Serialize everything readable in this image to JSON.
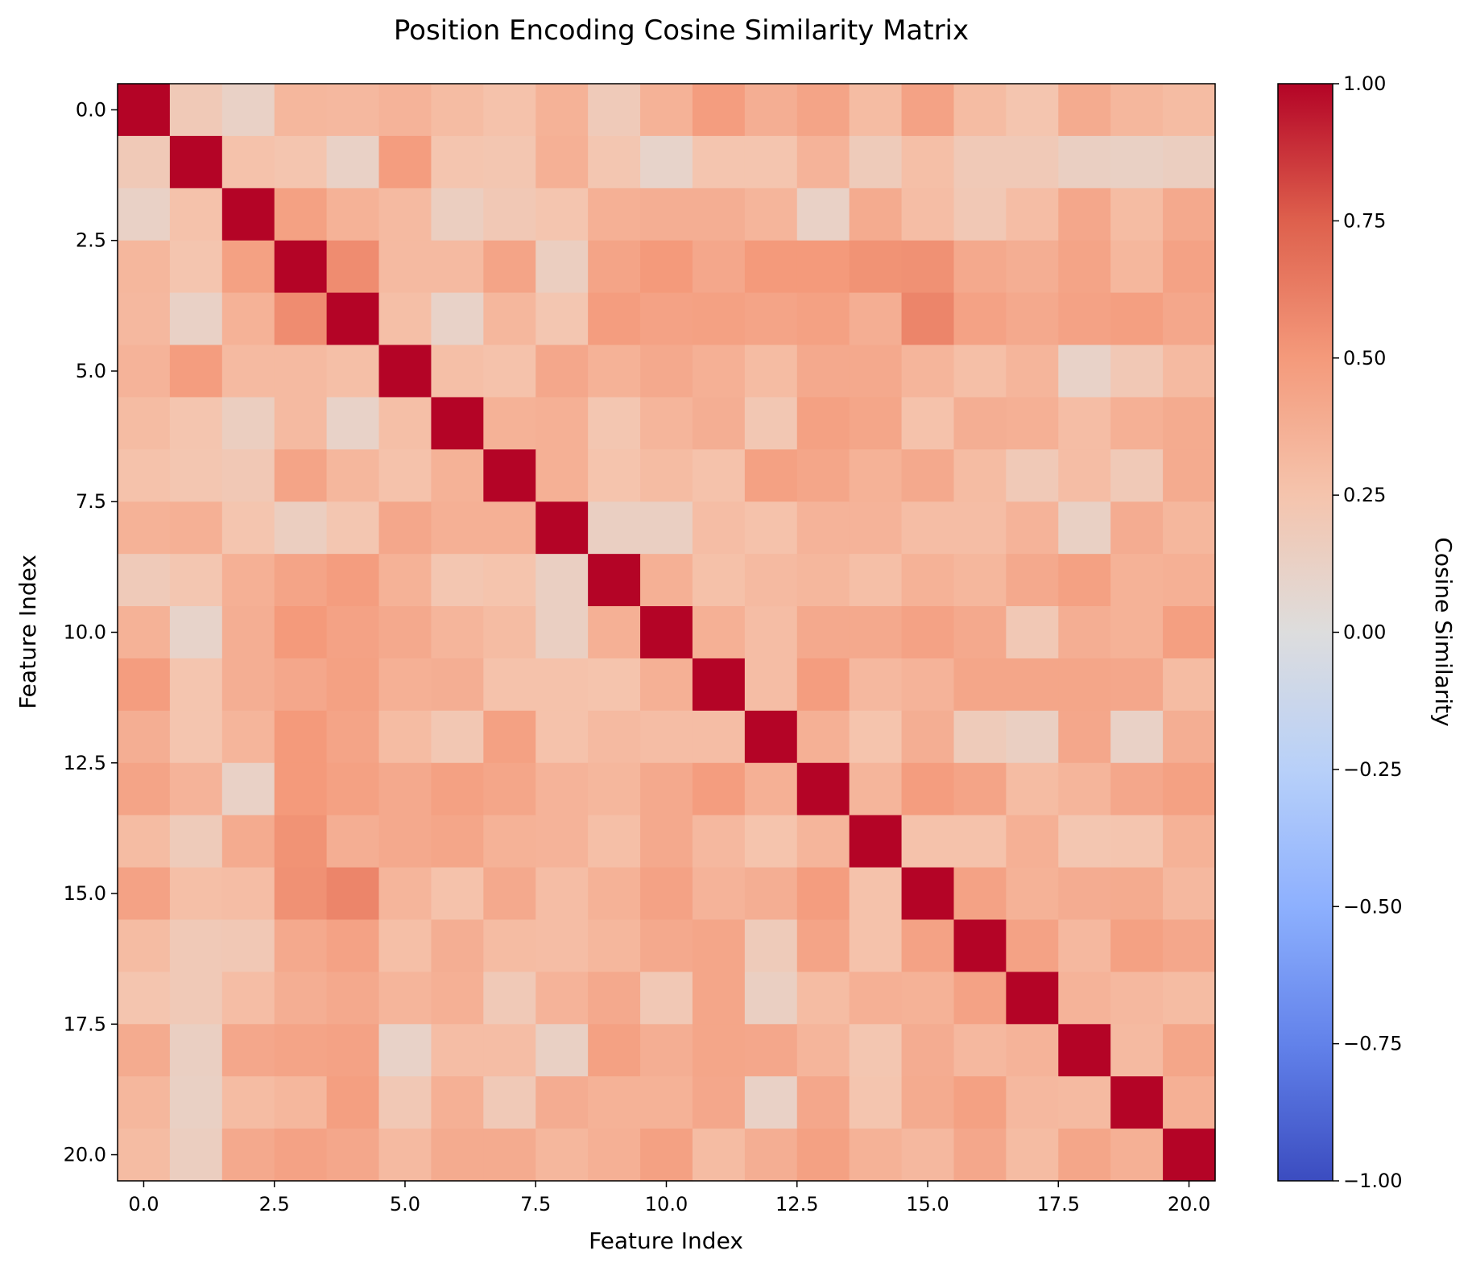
{
  "chart_data": {
    "type": "heatmap",
    "title": "Position Encoding Cosine Similarity Matrix",
    "xlabel": "Feature Index",
    "ylabel": "Feature Index",
    "xlim": [
      -0.5,
      20.5
    ],
    "ylim": [
      20.5,
      -0.5
    ],
    "x_ticks": [
      0.0,
      2.5,
      5.0,
      7.5,
      10.0,
      12.5,
      15.0,
      17.5,
      20.0
    ],
    "x_tick_labels": [
      "0.0",
      "2.5",
      "5.0",
      "7.5",
      "10.0",
      "12.5",
      "15.0",
      "17.5",
      "20.0"
    ],
    "y_ticks": [
      0.0,
      2.5,
      5.0,
      7.5,
      10.0,
      12.5,
      15.0,
      17.5,
      20.0
    ],
    "y_tick_labels": [
      "0.0",
      "2.5",
      "5.0",
      "7.5",
      "10.0",
      "12.5",
      "15.0",
      "17.5",
      "20.0"
    ],
    "colormap": "coolwarm",
    "vmin": -1.0,
    "vmax": 1.0,
    "colorbar": {
      "label": "Cosine Similarity",
      "ticks": [
        1.0,
        0.75,
        0.5,
        0.25,
        0.0,
        -0.25,
        -0.5,
        -0.75,
        -1.0
      ],
      "tick_labels": [
        "1.00",
        "0.75",
        "0.50",
        "0.25",
        "0.00",
        "−0.25",
        "−0.50",
        "−0.75",
        "−1.00"
      ]
    },
    "matrix": [
      [
        1.0,
        0.2,
        0.12,
        0.33,
        0.32,
        0.35,
        0.3,
        0.26,
        0.36,
        0.19,
        0.36,
        0.48,
        0.38,
        0.44,
        0.3,
        0.45,
        0.3,
        0.24,
        0.4,
        0.33,
        0.3
      ],
      [
        0.2,
        1.0,
        0.26,
        0.24,
        0.12,
        0.48,
        0.24,
        0.23,
        0.37,
        0.23,
        0.1,
        0.24,
        0.24,
        0.35,
        0.18,
        0.28,
        0.2,
        0.2,
        0.14,
        0.13,
        0.15
      ],
      [
        0.12,
        0.26,
        1.0,
        0.46,
        0.36,
        0.31,
        0.15,
        0.21,
        0.24,
        0.37,
        0.38,
        0.38,
        0.34,
        0.12,
        0.4,
        0.29,
        0.21,
        0.29,
        0.42,
        0.3,
        0.41
      ],
      [
        0.33,
        0.24,
        0.46,
        1.0,
        0.56,
        0.31,
        0.31,
        0.44,
        0.15,
        0.44,
        0.5,
        0.42,
        0.5,
        0.5,
        0.53,
        0.54,
        0.41,
        0.38,
        0.44,
        0.33,
        0.45
      ],
      [
        0.32,
        0.12,
        0.36,
        0.56,
        1.0,
        0.28,
        0.11,
        0.33,
        0.23,
        0.48,
        0.45,
        0.46,
        0.44,
        0.46,
        0.38,
        0.59,
        0.45,
        0.41,
        0.45,
        0.47,
        0.42
      ],
      [
        0.35,
        0.48,
        0.31,
        0.31,
        0.28,
        1.0,
        0.28,
        0.26,
        0.42,
        0.36,
        0.41,
        0.37,
        0.3,
        0.41,
        0.41,
        0.34,
        0.28,
        0.34,
        0.11,
        0.21,
        0.31
      ],
      [
        0.3,
        0.24,
        0.15,
        0.31,
        0.11,
        0.28,
        1.0,
        0.36,
        0.37,
        0.23,
        0.34,
        0.38,
        0.22,
        0.46,
        0.43,
        0.26,
        0.38,
        0.37,
        0.29,
        0.37,
        0.4
      ],
      [
        0.26,
        0.23,
        0.21,
        0.44,
        0.33,
        0.26,
        0.36,
        1.0,
        0.37,
        0.25,
        0.3,
        0.26,
        0.46,
        0.43,
        0.36,
        0.41,
        0.3,
        0.2,
        0.29,
        0.2,
        0.4
      ],
      [
        0.36,
        0.37,
        0.24,
        0.15,
        0.23,
        0.42,
        0.37,
        0.37,
        1.0,
        0.14,
        0.14,
        0.29,
        0.26,
        0.35,
        0.35,
        0.29,
        0.29,
        0.35,
        0.13,
        0.39,
        0.33
      ],
      [
        0.19,
        0.23,
        0.37,
        0.44,
        0.48,
        0.36,
        0.23,
        0.25,
        0.14,
        1.0,
        0.37,
        0.27,
        0.31,
        0.33,
        0.28,
        0.36,
        0.33,
        0.41,
        0.46,
        0.36,
        0.37
      ],
      [
        0.36,
        0.1,
        0.38,
        0.5,
        0.45,
        0.41,
        0.34,
        0.3,
        0.14,
        0.37,
        1.0,
        0.37,
        0.29,
        0.41,
        0.41,
        0.45,
        0.41,
        0.21,
        0.38,
        0.36,
        0.47
      ],
      [
        0.48,
        0.24,
        0.38,
        0.42,
        0.46,
        0.37,
        0.38,
        0.26,
        0.26,
        0.25,
        0.37,
        1.0,
        0.29,
        0.48,
        0.32,
        0.35,
        0.43,
        0.43,
        0.43,
        0.42,
        0.3
      ],
      [
        0.38,
        0.24,
        0.34,
        0.5,
        0.44,
        0.3,
        0.22,
        0.46,
        0.26,
        0.31,
        0.29,
        0.29,
        1.0,
        0.37,
        0.25,
        0.38,
        0.18,
        0.14,
        0.42,
        0.12,
        0.38
      ],
      [
        0.44,
        0.35,
        0.12,
        0.5,
        0.46,
        0.41,
        0.46,
        0.43,
        0.35,
        0.33,
        0.41,
        0.48,
        0.37,
        1.0,
        0.34,
        0.48,
        0.44,
        0.3,
        0.34,
        0.42,
        0.46
      ],
      [
        0.3,
        0.18,
        0.4,
        0.53,
        0.38,
        0.41,
        0.43,
        0.36,
        0.35,
        0.28,
        0.41,
        0.32,
        0.25,
        0.34,
        1.0,
        0.26,
        0.26,
        0.37,
        0.23,
        0.24,
        0.36
      ],
      [
        0.45,
        0.28,
        0.29,
        0.54,
        0.59,
        0.34,
        0.26,
        0.41,
        0.29,
        0.36,
        0.45,
        0.35,
        0.38,
        0.48,
        0.26,
        1.0,
        0.45,
        0.36,
        0.39,
        0.4,
        0.32
      ],
      [
        0.3,
        0.2,
        0.21,
        0.41,
        0.45,
        0.28,
        0.38,
        0.3,
        0.29,
        0.33,
        0.41,
        0.43,
        0.18,
        0.44,
        0.26,
        0.45,
        1.0,
        0.45,
        0.32,
        0.46,
        0.42
      ],
      [
        0.24,
        0.2,
        0.29,
        0.38,
        0.41,
        0.34,
        0.37,
        0.2,
        0.35,
        0.41,
        0.21,
        0.43,
        0.14,
        0.3,
        0.37,
        0.36,
        0.45,
        1.0,
        0.35,
        0.32,
        0.3
      ],
      [
        0.4,
        0.14,
        0.42,
        0.44,
        0.45,
        0.11,
        0.29,
        0.29,
        0.13,
        0.46,
        0.38,
        0.43,
        0.42,
        0.34,
        0.23,
        0.39,
        0.32,
        0.35,
        1.0,
        0.31,
        0.43
      ],
      [
        0.33,
        0.13,
        0.3,
        0.33,
        0.47,
        0.21,
        0.37,
        0.2,
        0.39,
        0.36,
        0.36,
        0.42,
        0.12,
        0.42,
        0.24,
        0.4,
        0.46,
        0.32,
        0.31,
        1.0,
        0.37
      ],
      [
        0.3,
        0.15,
        0.41,
        0.45,
        0.42,
        0.31,
        0.4,
        0.4,
        0.33,
        0.37,
        0.46,
        0.3,
        0.38,
        0.46,
        0.36,
        0.32,
        0.42,
        0.3,
        0.43,
        0.37,
        1.0
      ]
    ]
  }
}
